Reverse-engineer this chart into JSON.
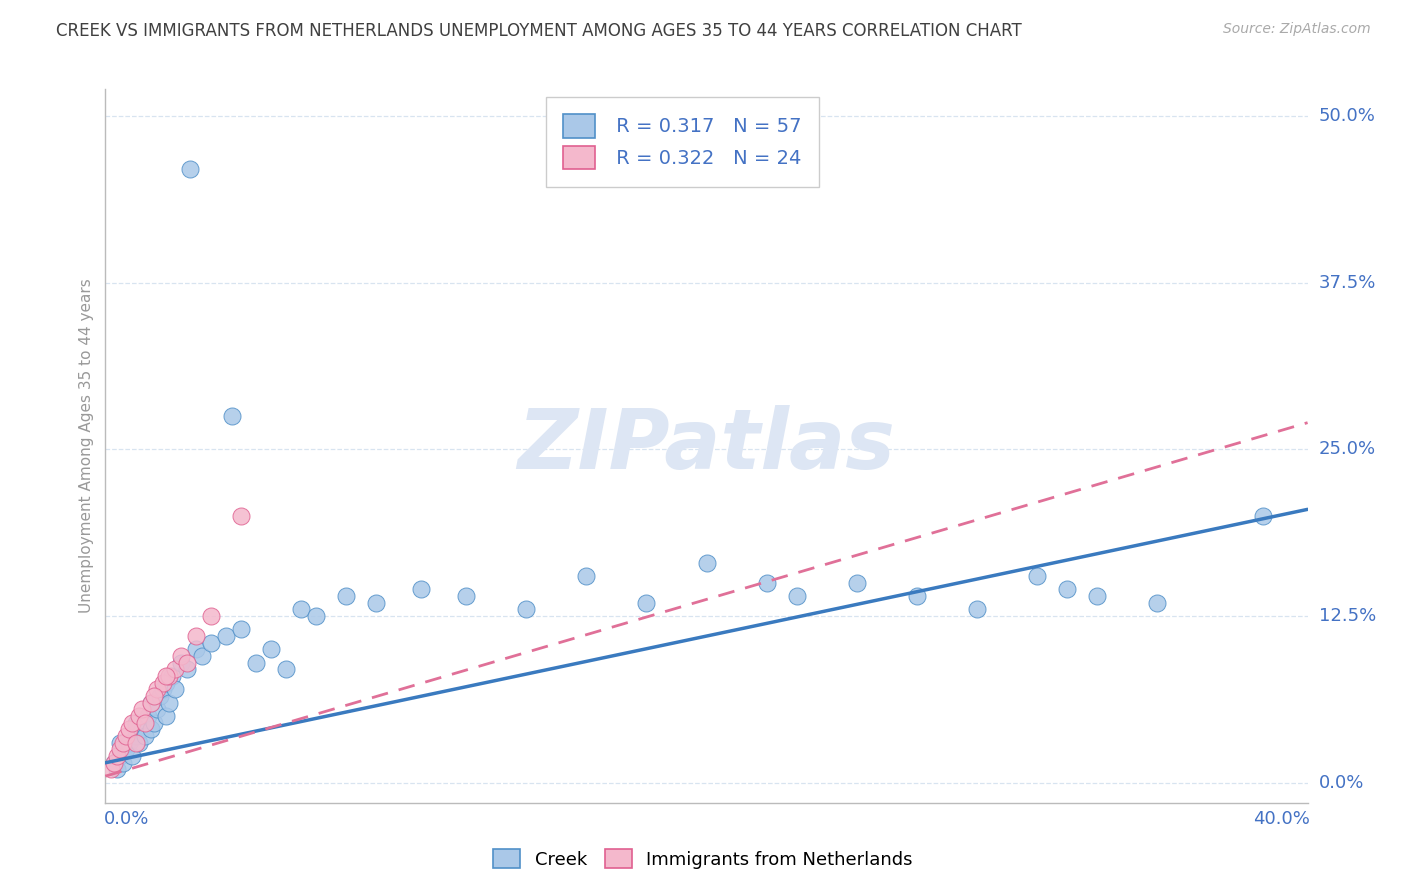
{
  "title": "CREEK VS IMMIGRANTS FROM NETHERLANDS UNEMPLOYMENT AMONG AGES 35 TO 44 YEARS CORRELATION CHART",
  "source": "Source: ZipAtlas.com",
  "ylabel": "Unemployment Among Ages 35 to 44 years",
  "yticks_labels": [
    "0.0%",
    "12.5%",
    "25.0%",
    "37.5%",
    "50.0%"
  ],
  "ytick_vals": [
    0.0,
    12.5,
    25.0,
    37.5,
    50.0
  ],
  "xlim": [
    0.0,
    40.0
  ],
  "ylim": [
    -1.5,
    52.0
  ],
  "creek_R": "0.317",
  "creek_N": "57",
  "netherlands_R": "0.322",
  "netherlands_N": "24",
  "creek_color": "#aac8e8",
  "creek_edge_color": "#5090c8",
  "netherlands_color": "#f4b8cc",
  "netherlands_edge_color": "#e06090",
  "creek_line_color": "#3a7abf",
  "netherlands_line_color": "#e07098",
  "axis_label_color": "#4472c4",
  "legend_text_color": "#4472c4",
  "title_color": "#404040",
  "ylabel_color": "#999999",
  "grid_color": "#d8e4f0",
  "watermark_color": "#dde6f4",
  "watermark": "ZIPatlas",
  "creek_x": [
    0.3,
    0.4,
    0.5,
    0.5,
    0.6,
    0.7,
    0.8,
    0.9,
    1.0,
    1.0,
    1.1,
    1.2,
    1.3,
    1.4,
    1.5,
    1.5,
    1.6,
    1.7,
    1.8,
    1.9,
    2.0,
    2.0,
    2.1,
    2.2,
    2.3,
    2.5,
    2.7,
    3.0,
    3.2,
    3.5,
    4.0,
    4.5,
    5.0,
    5.5,
    6.0,
    6.5,
    7.0,
    8.0,
    9.0,
    10.5,
    12.0,
    14.0,
    16.0,
    18.0,
    20.0,
    22.0,
    23.0,
    25.0,
    27.0,
    29.0,
    31.0,
    32.0,
    33.0,
    35.0,
    38.5,
    2.8,
    4.2
  ],
  "creek_y": [
    1.5,
    1.0,
    2.0,
    3.0,
    1.5,
    2.5,
    3.0,
    2.0,
    3.5,
    4.5,
    3.0,
    4.0,
    3.5,
    5.0,
    4.0,
    6.0,
    4.5,
    5.5,
    6.5,
    7.0,
    5.0,
    7.5,
    6.0,
    8.0,
    7.0,
    9.0,
    8.5,
    10.0,
    9.5,
    10.5,
    11.0,
    11.5,
    9.0,
    10.0,
    8.5,
    13.0,
    12.5,
    14.0,
    13.5,
    14.5,
    14.0,
    13.0,
    15.5,
    13.5,
    16.5,
    15.0,
    14.0,
    15.0,
    14.0,
    13.0,
    15.5,
    14.5,
    14.0,
    13.5,
    20.0,
    46.0,
    27.5
  ],
  "neth_x": [
    0.2,
    0.3,
    0.4,
    0.5,
    0.6,
    0.7,
    0.8,
    0.9,
    1.0,
    1.1,
    1.2,
    1.3,
    1.5,
    1.7,
    1.9,
    2.1,
    2.3,
    2.5,
    2.7,
    3.0,
    3.5,
    4.5,
    1.6,
    2.0
  ],
  "neth_y": [
    1.0,
    1.5,
    2.0,
    2.5,
    3.0,
    3.5,
    4.0,
    4.5,
    3.0,
    5.0,
    5.5,
    4.5,
    6.0,
    7.0,
    7.5,
    8.0,
    8.5,
    9.5,
    9.0,
    11.0,
    12.5,
    20.0,
    6.5,
    8.0
  ],
  "creek_line_x_start": 0.0,
  "creek_line_x_end": 40.0,
  "creek_line_y_start": 1.5,
  "creek_line_y_end": 20.5,
  "neth_line_x_start": 0.0,
  "neth_line_x_end": 40.0,
  "neth_line_y_start": 0.5,
  "neth_line_y_end": 27.0
}
